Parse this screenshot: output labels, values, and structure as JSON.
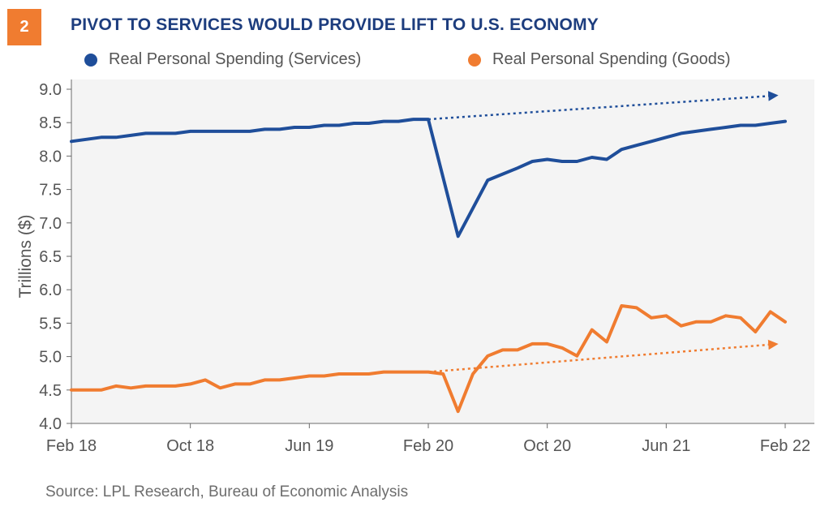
{
  "header": {
    "badge": "2",
    "title": "PIVOT TO SERVICES WOULD PROVIDE LIFT TO U.S. ECONOMY"
  },
  "legend": [
    {
      "label": "Real Personal Spending (Services)",
      "color": "#1f4e9a"
    },
    {
      "label": "Real Personal Spending (Goods)",
      "color": "#f07c30"
    }
  ],
  "source": "Source: LPL Research, Bureau of Economic Analysis",
  "chart_data": {
    "type": "line",
    "ylabel": "Trillions ($)",
    "xlabel": "",
    "ylim": [
      4.0,
      9.0
    ],
    "yticks": [
      "9.0",
      "8.5",
      "8.0",
      "7.5",
      "7.0",
      "6.5",
      "6.0",
      "5.5",
      "5.0",
      "4.5",
      "4.0"
    ],
    "xticks": [
      "Feb 18",
      "Oct 18",
      "Jun 19",
      "Feb 20",
      "Oct 20",
      "Jun 21",
      "Feb 22"
    ],
    "xlim": [
      "2018-02",
      "2022-02"
    ],
    "grid": false,
    "series": [
      {
        "name": "Real Personal Spending (Services)",
        "color": "#1f4e9a",
        "x": [
          "2018-02",
          "2018-03",
          "2018-04",
          "2018-05",
          "2018-06",
          "2018-07",
          "2018-08",
          "2018-09",
          "2018-10",
          "2018-11",
          "2018-12",
          "2019-01",
          "2019-02",
          "2019-03",
          "2019-04",
          "2019-05",
          "2019-06",
          "2019-07",
          "2019-08",
          "2019-09",
          "2019-10",
          "2019-11",
          "2019-12",
          "2020-01",
          "2020-02",
          "2020-04",
          "2020-06",
          "2020-07",
          "2020-08",
          "2020-09",
          "2020-10",
          "2020-11",
          "2020-12",
          "2021-01",
          "2021-02",
          "2021-03",
          "2021-04",
          "2021-05",
          "2021-06",
          "2021-07",
          "2021-08",
          "2021-09",
          "2021-10",
          "2021-11",
          "2021-12",
          "2022-01",
          "2022-02"
        ],
        "values": [
          8.22,
          8.25,
          8.28,
          8.28,
          8.31,
          8.34,
          8.34,
          8.34,
          8.37,
          8.37,
          8.37,
          8.37,
          8.37,
          8.4,
          8.4,
          8.43,
          8.43,
          8.46,
          8.46,
          8.49,
          8.49,
          8.52,
          8.52,
          8.55,
          8.55,
          6.8,
          7.64,
          7.73,
          7.82,
          7.92,
          7.95,
          7.92,
          7.92,
          7.98,
          7.95,
          8.1,
          8.16,
          8.22,
          8.28,
          8.34,
          8.37,
          8.4,
          8.43,
          8.46,
          8.46,
          8.49,
          8.52
        ]
      },
      {
        "name": "Real Personal Spending (Goods)",
        "color": "#f07c30",
        "x": [
          "2018-02",
          "2018-03",
          "2018-04",
          "2018-05",
          "2018-06",
          "2018-07",
          "2018-08",
          "2018-09",
          "2018-10",
          "2018-11",
          "2018-12",
          "2019-01",
          "2019-02",
          "2019-03",
          "2019-04",
          "2019-05",
          "2019-06",
          "2019-07",
          "2019-08",
          "2019-09",
          "2019-10",
          "2019-11",
          "2019-12",
          "2020-01",
          "2020-02",
          "2020-03",
          "2020-04",
          "2020-05",
          "2020-06",
          "2020-07",
          "2020-08",
          "2020-09",
          "2020-10",
          "2020-11",
          "2020-12",
          "2021-01",
          "2021-02",
          "2021-03",
          "2021-04",
          "2021-05",
          "2021-06",
          "2021-07",
          "2021-08",
          "2021-09",
          "2021-10",
          "2021-11",
          "2021-12",
          "2022-01",
          "2022-02"
        ],
        "values": [
          4.5,
          4.5,
          4.5,
          4.56,
          4.53,
          4.56,
          4.56,
          4.56,
          4.59,
          4.65,
          4.53,
          4.59,
          4.59,
          4.65,
          4.65,
          4.68,
          4.71,
          4.71,
          4.74,
          4.74,
          4.74,
          4.77,
          4.77,
          4.77,
          4.77,
          4.74,
          4.18,
          4.74,
          5.01,
          5.1,
          5.1,
          5.19,
          5.19,
          5.13,
          5.01,
          5.4,
          5.22,
          5.76,
          5.73,
          5.58,
          5.61,
          5.46,
          5.52,
          5.52,
          5.61,
          5.58,
          5.37,
          5.67,
          5.52
        ]
      }
    ],
    "annotations": [
      {
        "type": "dotted-arrow",
        "series": "Real Personal Spending (Services)",
        "from": {
          "x": "2020-02",
          "y": 8.55
        },
        "to": {
          "x": "2022-01",
          "y": 8.9
        }
      },
      {
        "type": "dotted-arrow",
        "series": "Real Personal Spending (Goods)",
        "from": {
          "x": "2020-02",
          "y": 4.77
        },
        "to": {
          "x": "2022-01",
          "y": 5.18
        }
      }
    ]
  }
}
